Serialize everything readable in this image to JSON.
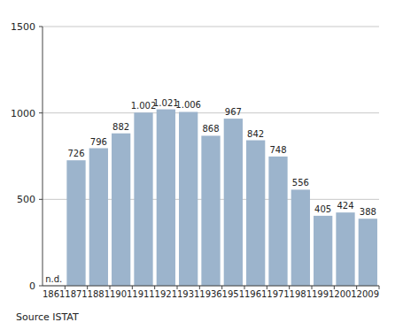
{
  "chart_data": {
    "type": "bar",
    "categories": [
      "1861",
      "1871",
      "1881",
      "1901",
      "1911",
      "1921",
      "1931",
      "1936",
      "1951",
      "1961",
      "1971",
      "1981",
      "1991",
      "2001",
      "2009"
    ],
    "values": [
      null,
      726,
      796,
      882,
      1002,
      1021,
      1006,
      868,
      967,
      842,
      748,
      556,
      405,
      424,
      388
    ],
    "value_labels": [
      "n.d.",
      "726",
      "796",
      "882",
      "1.002",
      "1.021",
      "1.006",
      "868",
      "967",
      "842",
      "748",
      "556",
      "405",
      "424",
      "388"
    ],
    "data_labels": true,
    "color": "#9cb4cc",
    "ylim": [
      0,
      1500
    ],
    "yticks": [
      0,
      500,
      1000,
      1500
    ],
    "grid": true,
    "annotations": [
      "Source ISTAT"
    ]
  }
}
